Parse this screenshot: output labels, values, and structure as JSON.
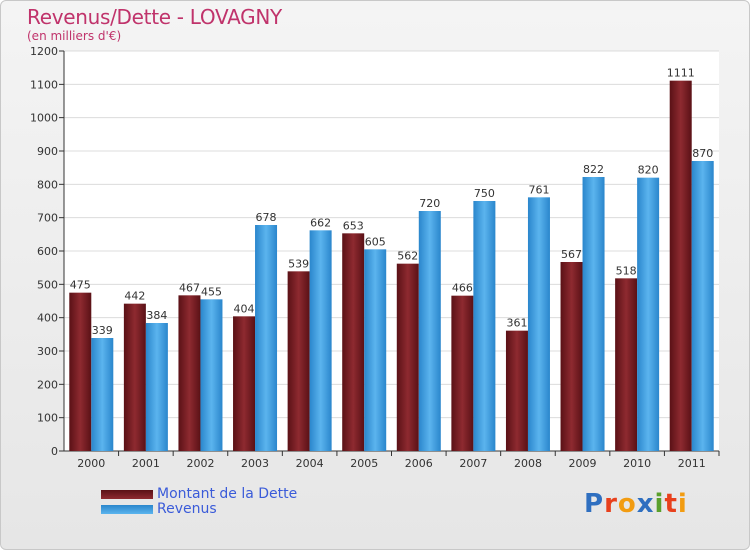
{
  "chart_data": {
    "type": "bar",
    "title": "Revenus/Dette - LOVAGNY",
    "subtitle": "(en milliers d'€)",
    "categories": [
      "2000",
      "2001",
      "2002",
      "2003",
      "2004",
      "2005",
      "2006",
      "2007",
      "2008",
      "2009",
      "2010",
      "2011"
    ],
    "series": [
      {
        "name": "Montant de la Dette",
        "color": "#7a1f24",
        "values": [
          475,
          442,
          467,
          404,
          539,
          653,
          562,
          466,
          361,
          567,
          518,
          1111
        ]
      },
      {
        "name": "Revenus",
        "color": "#3f9de0",
        "values": [
          339,
          384,
          455,
          678,
          662,
          605,
          720,
          750,
          761,
          822,
          820,
          870
        ]
      }
    ],
    "ylim": [
      0,
      1200
    ],
    "yticks": [
      0,
      100,
      200,
      300,
      400,
      500,
      600,
      700,
      800,
      900,
      1000,
      1100,
      1200
    ],
    "grid": true,
    "legend_position": "bottom-left"
  },
  "brand": {
    "logo_letters": [
      "P",
      "r",
      "o",
      "x",
      "i",
      "t",
      "i"
    ],
    "logo_colors": [
      "#2f6fc0",
      "#e8401c",
      "#f29c11",
      "#2f6fc0",
      "#5aa02c",
      "#e8401c",
      "#f29c11"
    ]
  }
}
